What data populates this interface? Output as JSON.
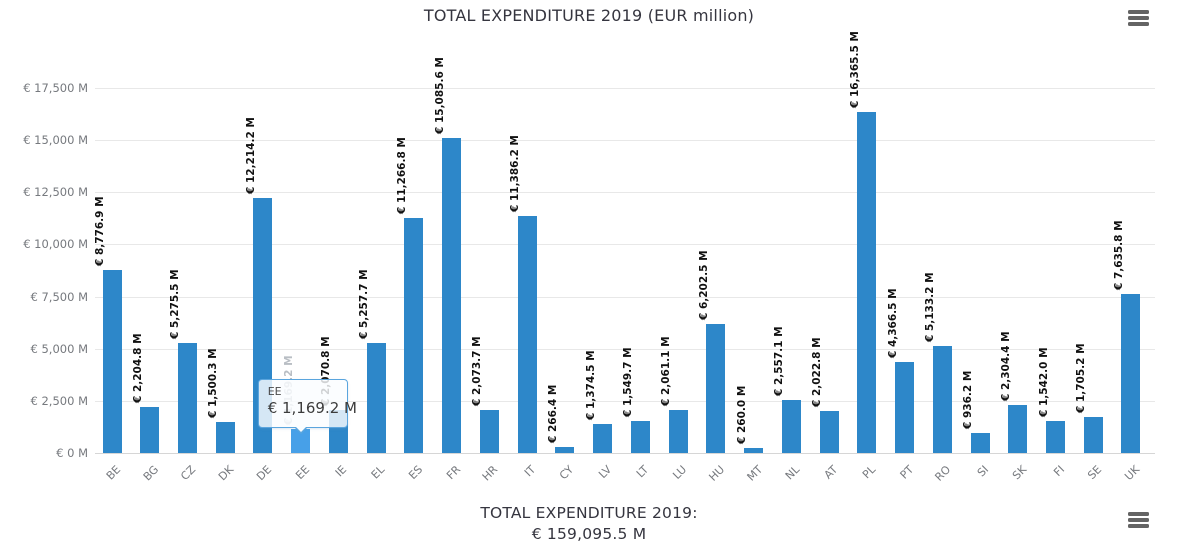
{
  "header": {
    "title": "TOTAL EXPENDITURE 2019 (EUR million)"
  },
  "chart_data": {
    "type": "bar",
    "title": "TOTAL EXPENDITURE 2019 (EUR million)",
    "unit": "EUR million",
    "categories": [
      "BE",
      "BG",
      "CZ",
      "DK",
      "DE",
      "EE",
      "IE",
      "EL",
      "ES",
      "FR",
      "HR",
      "IT",
      "CY",
      "LV",
      "LT",
      "LU",
      "HU",
      "MT",
      "NL",
      "AT",
      "PL",
      "PT",
      "RO",
      "SI",
      "SK",
      "FI",
      "SE",
      "UK"
    ],
    "values": [
      8776.9,
      2204.8,
      5275.5,
      1500.3,
      12214.2,
      1169.2,
      2070.8,
      5257.7,
      11266.8,
      15085.6,
      2073.7,
      11386.2,
      266.4,
      1374.5,
      1549.7,
      2061.1,
      6202.5,
      260.0,
      2557.1,
      2022.8,
      16365.5,
      4366.5,
      5133.2,
      936.2,
      2304.4,
      1542.0,
      1705.2,
      7635.8
    ],
    "bar_labels": [
      "€ 8,776.9 M",
      "€ 2,204.8 M",
      "€ 5,275.5 M",
      "€ 1,500.3 M",
      "€ 12,214.2 M",
      "€ 1,169.2 M",
      "€ 2,070.8 M",
      "€ 5,257.7 M",
      "€ 11,266.8 M",
      "€ 15,085.6 M",
      "€ 2,073.7 M",
      "€ 11,386.2 M",
      "€ 266.4 M",
      "€ 1,374.5 M",
      "€ 1,549.7 M",
      "€ 2,061.1 M",
      "€ 6,202.5 M",
      "€ 260.0 M",
      "€ 2,557.1 M",
      "€ 2,022.8 M",
      "€ 16,365.5 M",
      "€ 4,366.5 M",
      "€ 5,133.2 M",
      "€ 936.2 M",
      "€ 2,304.4 M",
      "€ 1,542.0 M",
      "€ 1,705.2 M",
      "€ 7,635.8 M"
    ],
    "y_ticks": [
      {
        "value": 0,
        "label": "€ 0 M"
      },
      {
        "value": 2500,
        "label": "€ 2,500 M"
      },
      {
        "value": 5000,
        "label": "€ 5,000 M"
      },
      {
        "value": 7500,
        "label": "€ 7,500 M"
      },
      {
        "value": 10000,
        "label": "€ 10,000 M"
      },
      {
        "value": 12500,
        "label": "€ 12,500 M"
      },
      {
        "value": 15000,
        "label": "€ 15,000 M"
      },
      {
        "value": 17500,
        "label": "€ 17,500 M"
      }
    ],
    "ylim": [
      0,
      18800
    ],
    "grid": true,
    "legend": false
  },
  "tooltip": {
    "category": "EE",
    "value_label": "€ 1,169.2 M"
  },
  "footer": {
    "line1": "TOTAL EXPENDITURE 2019:",
    "line2": "€ 159,095.5 M"
  },
  "icons": {
    "top_menu": "hamburger-menu-icon",
    "bottom_menu": "hamburger-menu-icon"
  },
  "colors": {
    "bar": "#2d87c9",
    "bar_highlight": "#47a0e8",
    "grid_line": "#e8e8e8",
    "axis_line": "#d6d6d6",
    "axis_label": "#76797e",
    "value_label": "#111111",
    "value_label_faded": "#b9bec4",
    "title_text": "#35353f",
    "tooltip_border": "#5aa5de",
    "tooltip_text": "#3c3c3c",
    "menu_icon": "#646464"
  }
}
